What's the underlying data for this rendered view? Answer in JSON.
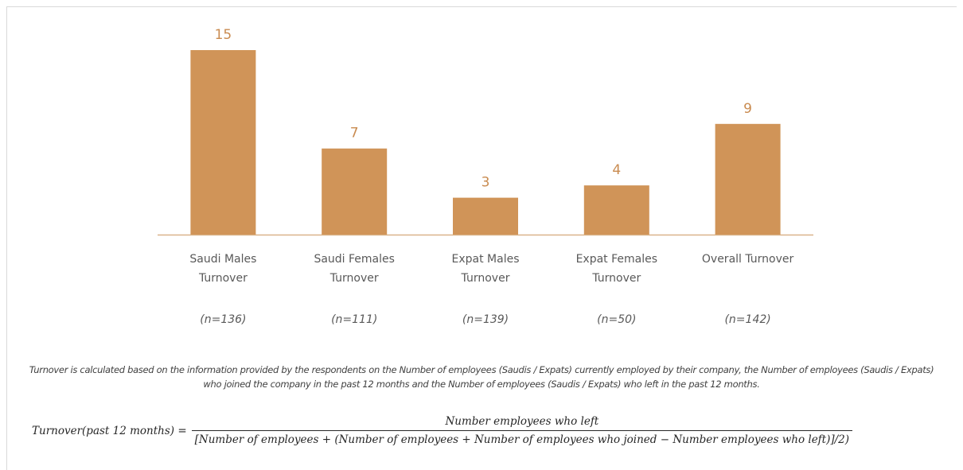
{
  "chart_data": {
    "type": "bar",
    "categories": [
      "Saudi Males\nTurnover",
      "Saudi Females\nTurnover",
      "Expat Males\nTurnover",
      "Expat Females\nTurnover",
      "Overall Turnover"
    ],
    "values": [
      15,
      7,
      3,
      4,
      9
    ],
    "sample_sizes": [
      "(n=136)",
      "(n=111)",
      "(n=139)",
      "(n=50)",
      "(n=142)"
    ],
    "color": "#d09458",
    "note": "Turnover is calculated based on the information provided by the respondents on the Number of employees (Saudis / Expats) currently employed by their company, the Number of employees (Saudis / Expats) who joined the company in the past 12 months and the Number of employees (Saudis / Expats) who left in the past 12 months.",
    "formula": {
      "lhs": "Turnover(past 12 months) =",
      "numerator": "Number employees who left",
      "denominator": "[Number of employees + (Number of employees + Number of employees who joined − Number employees who left)]/2)"
    }
  }
}
